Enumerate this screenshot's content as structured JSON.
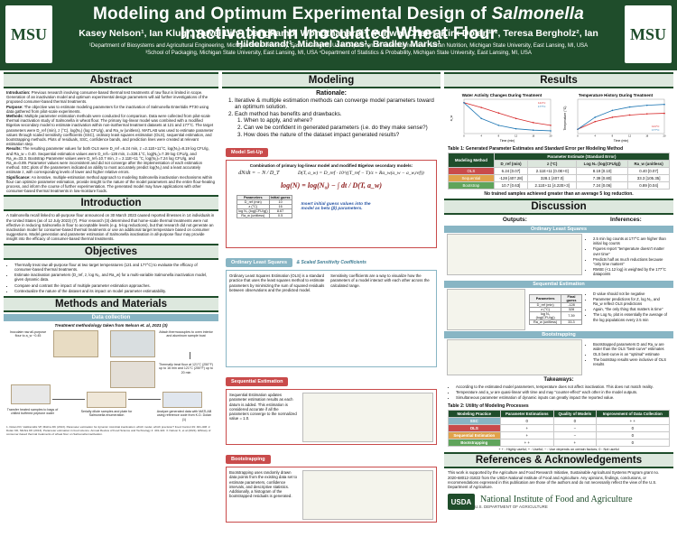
{
  "header": {
    "title_pre": "Modeling and Optimum Experimental Design of ",
    "title_italic": "Salmonella",
    "title_post": " Inactivation in Inoculated Wheat Flour",
    "authors": "Kasey Nelson¹, Ian Klug¹, Yawei Lin², Dangkamol Wongthanaroj³, Yunwei Chen⁴, Kirk Dolan¹·², Teresa Bergholz², Ian Hildebrandt¹, Michael James¹, Bradley Marks¹",
    "affiliations_1": "¹Department of Biosystems and Agricultural Engineering, Michigan State University, East Lansing MI, USA  ²Department of Food Science and Human Nutrition, Michigan State University, East Lansing, MI, USA",
    "affiliations_2": "³School of Packaging, Michigan State University, East Lansing, MI, USA  ⁴Department of Statistics & Probability, Michigan State University, East Lansing, MI, USA",
    "logo_left": "MSU",
    "logo_right": "MSU"
  },
  "abstract": {
    "title": "Abstract",
    "intro_label": "Introduction:",
    "intro": "Previous research involving consumer-based thermal test treatments of raw flour is limited in scope. Generation of an inactivation model and optimum experimental design parameters will aid further investigations of the proposed consumer-based thermal treatments.",
    "purpose_label": "Purpose:",
    "purpose": "The objective was to estimate modeling parameters for the inactivation of Salmonella Enteritidis PT30 using data gathered from pilot-scale experiments.",
    "methods_label": "Methods:",
    "methods": "Multiple parameter estimation methods were conducted for comparison. Data were collected from pilot-scale thermal inactivation study of Salmonella in wheat flour. The primary log-linear model was combined with a modified Bigelow secondary model to estimate inactivation within non-isothermal treatment datasets at 121 and 177°C. The target parameters were D_ref (min), z (°C), log(N₀) (log CFU/g), and Ra_w (unitless). MATLAB was used to estimate parameter values through scaled sensitivity coefficients (SSC), ordinary least squares estimation (OLS), sequential estimation, and bootstrapping methods. Plots of residuals, SSC, confidence bands, and prediction lines were created at relevant estimation step.",
    "results_label": "Results:",
    "results": "The resulting parameter values for both OLS were D_ref =6.24 min, z =2.11E+11°C, log(N₀)=8.19 log CFU/g, and Ra_w = 0.40. Sequential estimation values were D_ref=-128 min, z=328.1°C, log(N₀)=7.39 log CFU/g, and Ra_w=33.3. Bootstrap Parameter values were D_ref=10.7 min, z = 2.11E+11 °C, log(N₀)=7.24 log CFU/g, and Ra_w=0.89. Parameter values were inconsistent and did not converge after the implementation of each estimation method. SSC plots of the parameters indicated an ability to most accurately predict log(N₀) and a least accurately estimate z, with corresponding levels of lower and higher relative errors.",
    "significance_label": "Significance:",
    "significance": "An iterative, multiple-estimation method approach to modeling Salmonella inactivation mechanisms within flour can optimize parameter estimation, provide insight to the nature of the model parameters and the entire flour-heating process, and inform the course of further experimentation. The generated model may have applications with other consumer-based thermal treatments in low-moisture foods."
  },
  "introduction": {
    "title": "Introduction",
    "text": "A Salmonella recall linked to all-purpose flour announced on 30 March 2023 caused reported illnesses in 14 individuals in the United States (as of 12 July 2023) (7). Prior research (3) determined that home-scale thermal treatments were not effective in reducing Salmonella in flour to acceptable levels (e.g. 5-log reductions), but that research did not generate an inactivation model for consumer-based thermal treatments or use an additional target temperature based on consumer suggestions. Model generation and parameter estimation of Salmonella inactivation in all-purpose flour may provide insight into the efficacy of consumer-based thermal treatments."
  },
  "objectives": {
    "title": "Objectives",
    "items": [
      "Thermally treat raw all-purpose flour at two target temperatures (121 and 177°C) to evaluate the efficacy of consumer-based thermal treatments.",
      "Estimate inactivation parameters (D_ref, z, log N₀, and Ra_w) for a multi-variable Salmonella inactivation model, given dynamic data.",
      "Compare and contrast the impact of multiple parameter estimation approaches.",
      "Contextualize the nature of the dataset and its impact on model parameter estimatability."
    ]
  },
  "methods": {
    "title": "Methods and Materials",
    "bar": "Data collection",
    "caption": "Treatment methodology taken from Nelson et. al, 2021 (3)",
    "steps": [
      "Inoculate raw all-purpose flour to a_w ~0.45",
      "Attach thermocouples to oven interior and aluminum sample boat",
      "Thermally treat flour at 121°C (250°F) up to 16 min and 121°C (250°F) up to 20 min",
      "Transfer heated samples to bags of chilled buffered peptone water",
      "Serially dilute samples and plate for Salmonella enumeration",
      "Analyze generated data with MATLAB using reference code from K.D. Dolan (1)"
    ],
    "footnote": "1. Dolan KD, Valdramidis VP, Mishra DK (2013). Parameter estimation for dynamic microbial inactivation: which model, which precision? Food Control 29: 401-408. 2. Dolan KD, Mishra DK (2013). Parameter estimation in food science. Annual Review of Food Science and Technology 4: 401-422. 3. Nelson K, et al (2021). Efficacy of consumer-based thermal treatments of wheat flour on Salmonella inactivation."
  },
  "modeling": {
    "title": "Modeling",
    "rationale_title": "Rationale:",
    "rationale_items": [
      "Iterative & multiple estimation methods can converge model parameters toward an optimum solution.",
      "Each method has benefits and drawbacks."
    ],
    "rationale_sub": [
      "When to apply, and where?",
      "Can we be confident in generated parameters (i.e. do they make sense?)",
      "How does the nature of the dataset impact generated results?"
    ],
    "setup_label": "Model Set-Up",
    "setup_caption": "Combination of primary log-linear model and modified Bigelow secondary models:",
    "eq1": "dN/dt = − N / D_T",
    "eq2": "D(T, a_w) = D_ref · 10^((T_ref − T)/z + Ra_w(a_w − a_w,ref))",
    "eq3": "log(N) = log(N₀) − ∫ dt / D(T, a_w)",
    "params_header": [
      "Parameters",
      "Initial guess"
    ],
    "params": [
      [
        "D_ref (min)",
        "10"
      ],
      [
        "z (°C)",
        "16"
      ],
      [
        "log N₀ (log(CFU/g))",
        "8.67"
      ],
      [
        "Ra_w (unitless)",
        "0.5"
      ]
    ],
    "insert_note": "Insert initial guess values into the model as beta (β) parameters.",
    "ols_label": "Ordinary Least Squares",
    "ssc_label": "& Scaled Sensitivity Coefficients",
    "ols_text": "Ordinary Least Squares Estimation (OLS) is a standard practice that uses the least squares method to estimate parameters by minimizing the sum of squared residuals between observations and the predicted model.",
    "ssc_text": "Sensitivity coefficients are a way to visualize how the parameters of a model interact with each other across the calculated range.",
    "seq_label": "Sequential Estimation",
    "seq_text": "Sequential Estimation updates parameter estimation results as each datum is added. This estimation is considered accurate if all the parameters converge to the normalized value = 1.0.",
    "boot_label": "Bootstrapping",
    "boot_text": "Bootstrapping uses randomly drawn data points from the existing data set to estimate parameters, confidence intervals, and descriptive statistics. Additionally, a histogram of the bootstrapped residuals is generated."
  },
  "results": {
    "title": "Results",
    "chart1": {
      "title": "Water Activity Changes During Treatment",
      "series": [
        "121°C",
        "177°C"
      ],
      "xlabel": "Time (min)",
      "ylabel": "a_w",
      "x": [
        0,
        4,
        8,
        12,
        16,
        20
      ],
      "s121": [
        0.45,
        0.38,
        0.3,
        0.22,
        0.16,
        0.12
      ],
      "s177": [
        0.45,
        0.22,
        0.12,
        0.07,
        0.05,
        0.04
      ]
    },
    "chart2": {
      "title": "Temperature History During Treatment",
      "series": [
        "121°C",
        "177°C"
      ],
      "xlabel": "Time (min)",
      "ylabel": "Temperature (°C)",
      "x": [
        0,
        4,
        8,
        12,
        16,
        20
      ],
      "s121": [
        25,
        70,
        95,
        108,
        115,
        118
      ],
      "s177": [
        25,
        95,
        135,
        155,
        165,
        170
      ]
    },
    "table1_caption": "Table 1: Generated Parameter Estimates and Standard Error per Modeling Method",
    "table1_group": "Parameter Estimate (Standard Error)",
    "table1_headers": [
      "Modeling Method",
      "D_ref (min)",
      "z (°C)",
      "Log N₀ (log(CFU/g))",
      "Ra_w (unitless)"
    ],
    "table1_rows": [
      [
        "OLS",
        "6.24 [0.07]",
        "2.11E+11 [0.0E+0]",
        "8.19 [0.10]",
        "0.40 [0.07]"
      ],
      [
        "Sequential",
        "-128 [407.28]",
        "328.1 [407.0]",
        "7.39 [0.80]",
        "33.3 [105.35]"
      ],
      [
        "Bootstrap",
        "10.7 [0.63]",
        "2.11E+11 [4.22E+3]",
        "7.24 [0.06]",
        "0.89 [0.04]"
      ]
    ],
    "table1_note": "No trained samples achieved greater than an average 5 log reduction."
  },
  "discussion": {
    "title": "Discussion",
    "outputs": "Outputs:",
    "inferences": "Inferences:",
    "ols_band": "Ordinary Least Squares",
    "ols_inf": [
      "2.5 min log counts at 177°C are higher than initial log counts",
      "Figures report \"temperature doesn't matter over time\"",
      "Predicts half as much reductions because \"only time matters\"",
      "RMSE (<1.12 log) is weighted by the 177°C datapoints"
    ],
    "seq_band": "Sequential Estimation",
    "seq_inf": [
      "D value should not be negative",
      "Parameter predictions for Z, log N₀, and Ra_w reflect OLS predictions",
      "Again, \"the only thing that matters is time\"",
      "The Log N₀ plot is essentially the average of the log populations every 2.5 min"
    ],
    "boot_band": "Bootstrapping",
    "boot_inf": [
      "Bootstrapped parameters D and Ra_w are wider than the OLS \"best-curve\" estimates",
      "OLS best-curve is an \"optimal\" estimate",
      "The bootstrap results were inclusive of OLS results"
    ],
    "seq_table_header": [
      "Parameters",
      "Final guess"
    ],
    "seq_table": [
      [
        "D_ref (min)",
        "-128"
      ],
      [
        "z (°C)",
        "328"
      ],
      [
        "log N₀ (log(CFU/g))",
        "7.39"
      ],
      [
        "Ra_w (unitless)",
        "33.3"
      ]
    ],
    "takeaways_title": "Takeaways:",
    "takeaways": [
      "According to the estimated model parameters, temperature does not affect inactivation. This does not match reality.",
      "Temperature and a_w are quasi-linear with time and may \"counter-effect\" each other in the model outputs.",
      "Simultaneous parameter estimation of dynamic inputs can greatly impact the reported value."
    ],
    "table2_caption": "Table 2: Utility of Modeling Processes",
    "table2_headers": [
      "Modeling Practice",
      "Parameter Estimations",
      "Quality of Models",
      "Improvement of Data Collection"
    ],
    "table2_rows": [
      [
        "SSC",
        "0",
        "0",
        "+ +"
      ],
      [
        "OLS",
        "+",
        "−",
        "0"
      ],
      [
        "Sequential Estimation",
        "+",
        "−",
        "0"
      ],
      [
        "Bootstrapping",
        "+ +",
        "+",
        "0"
      ]
    ],
    "table2_note": "+ + : Highly useful; + : Useful; − : Use depends on certain factors; 0 : Not useful"
  },
  "references": {
    "title": "References & Acknowledgements",
    "text": "This work is supported by the Agriculture and Food Research Initiative, Sustainable Agricultural Systems Program grant no. 2020-68012-31822 from the USDA National Institute of Food and Agriculture. Any opinions, findings, conclusions, or recommendations expressed in this publication are those of the authors and do not necessarily reflect the view of the U.S. Department of Agriculture.",
    "usda_mark": "USDA",
    "usda_org": "National Institute of Food and Agriculture",
    "usda_dept": "U.S. DEPARTMENT OF AGRICULTURE"
  },
  "colors": {
    "header_green": "#1f4d2b",
    "red": "#c94b4b",
    "teal": "#88b5c4",
    "orange": "#e0a24a",
    "green": "#5fa45b"
  },
  "chart_data": [
    {
      "type": "line",
      "title": "Water Activity Changes During Treatment",
      "xlabel": "Time (min)",
      "ylabel": "a_w",
      "x": [
        0,
        4,
        8,
        12,
        16,
        20
      ],
      "series": [
        {
          "name": "121°C",
          "values": [
            0.45,
            0.38,
            0.3,
            0.22,
            0.16,
            0.12
          ]
        },
        {
          "name": "177°C",
          "values": [
            0.45,
            0.22,
            0.12,
            0.07,
            0.05,
            0.04
          ]
        }
      ],
      "ylim": [
        0,
        0.5
      ]
    },
    {
      "type": "line",
      "title": "Temperature History During Treatment",
      "xlabel": "Time (min)",
      "ylabel": "Temperature (°C)",
      "x": [
        0,
        4,
        8,
        12,
        16,
        20
      ],
      "series": [
        {
          "name": "121°C",
          "values": [
            25,
            70,
            95,
            108,
            115,
            118
          ]
        },
        {
          "name": "177°C",
          "values": [
            25,
            95,
            135,
            155,
            165,
            170
          ]
        }
      ],
      "ylim": [
        0,
        200
      ]
    }
  ]
}
